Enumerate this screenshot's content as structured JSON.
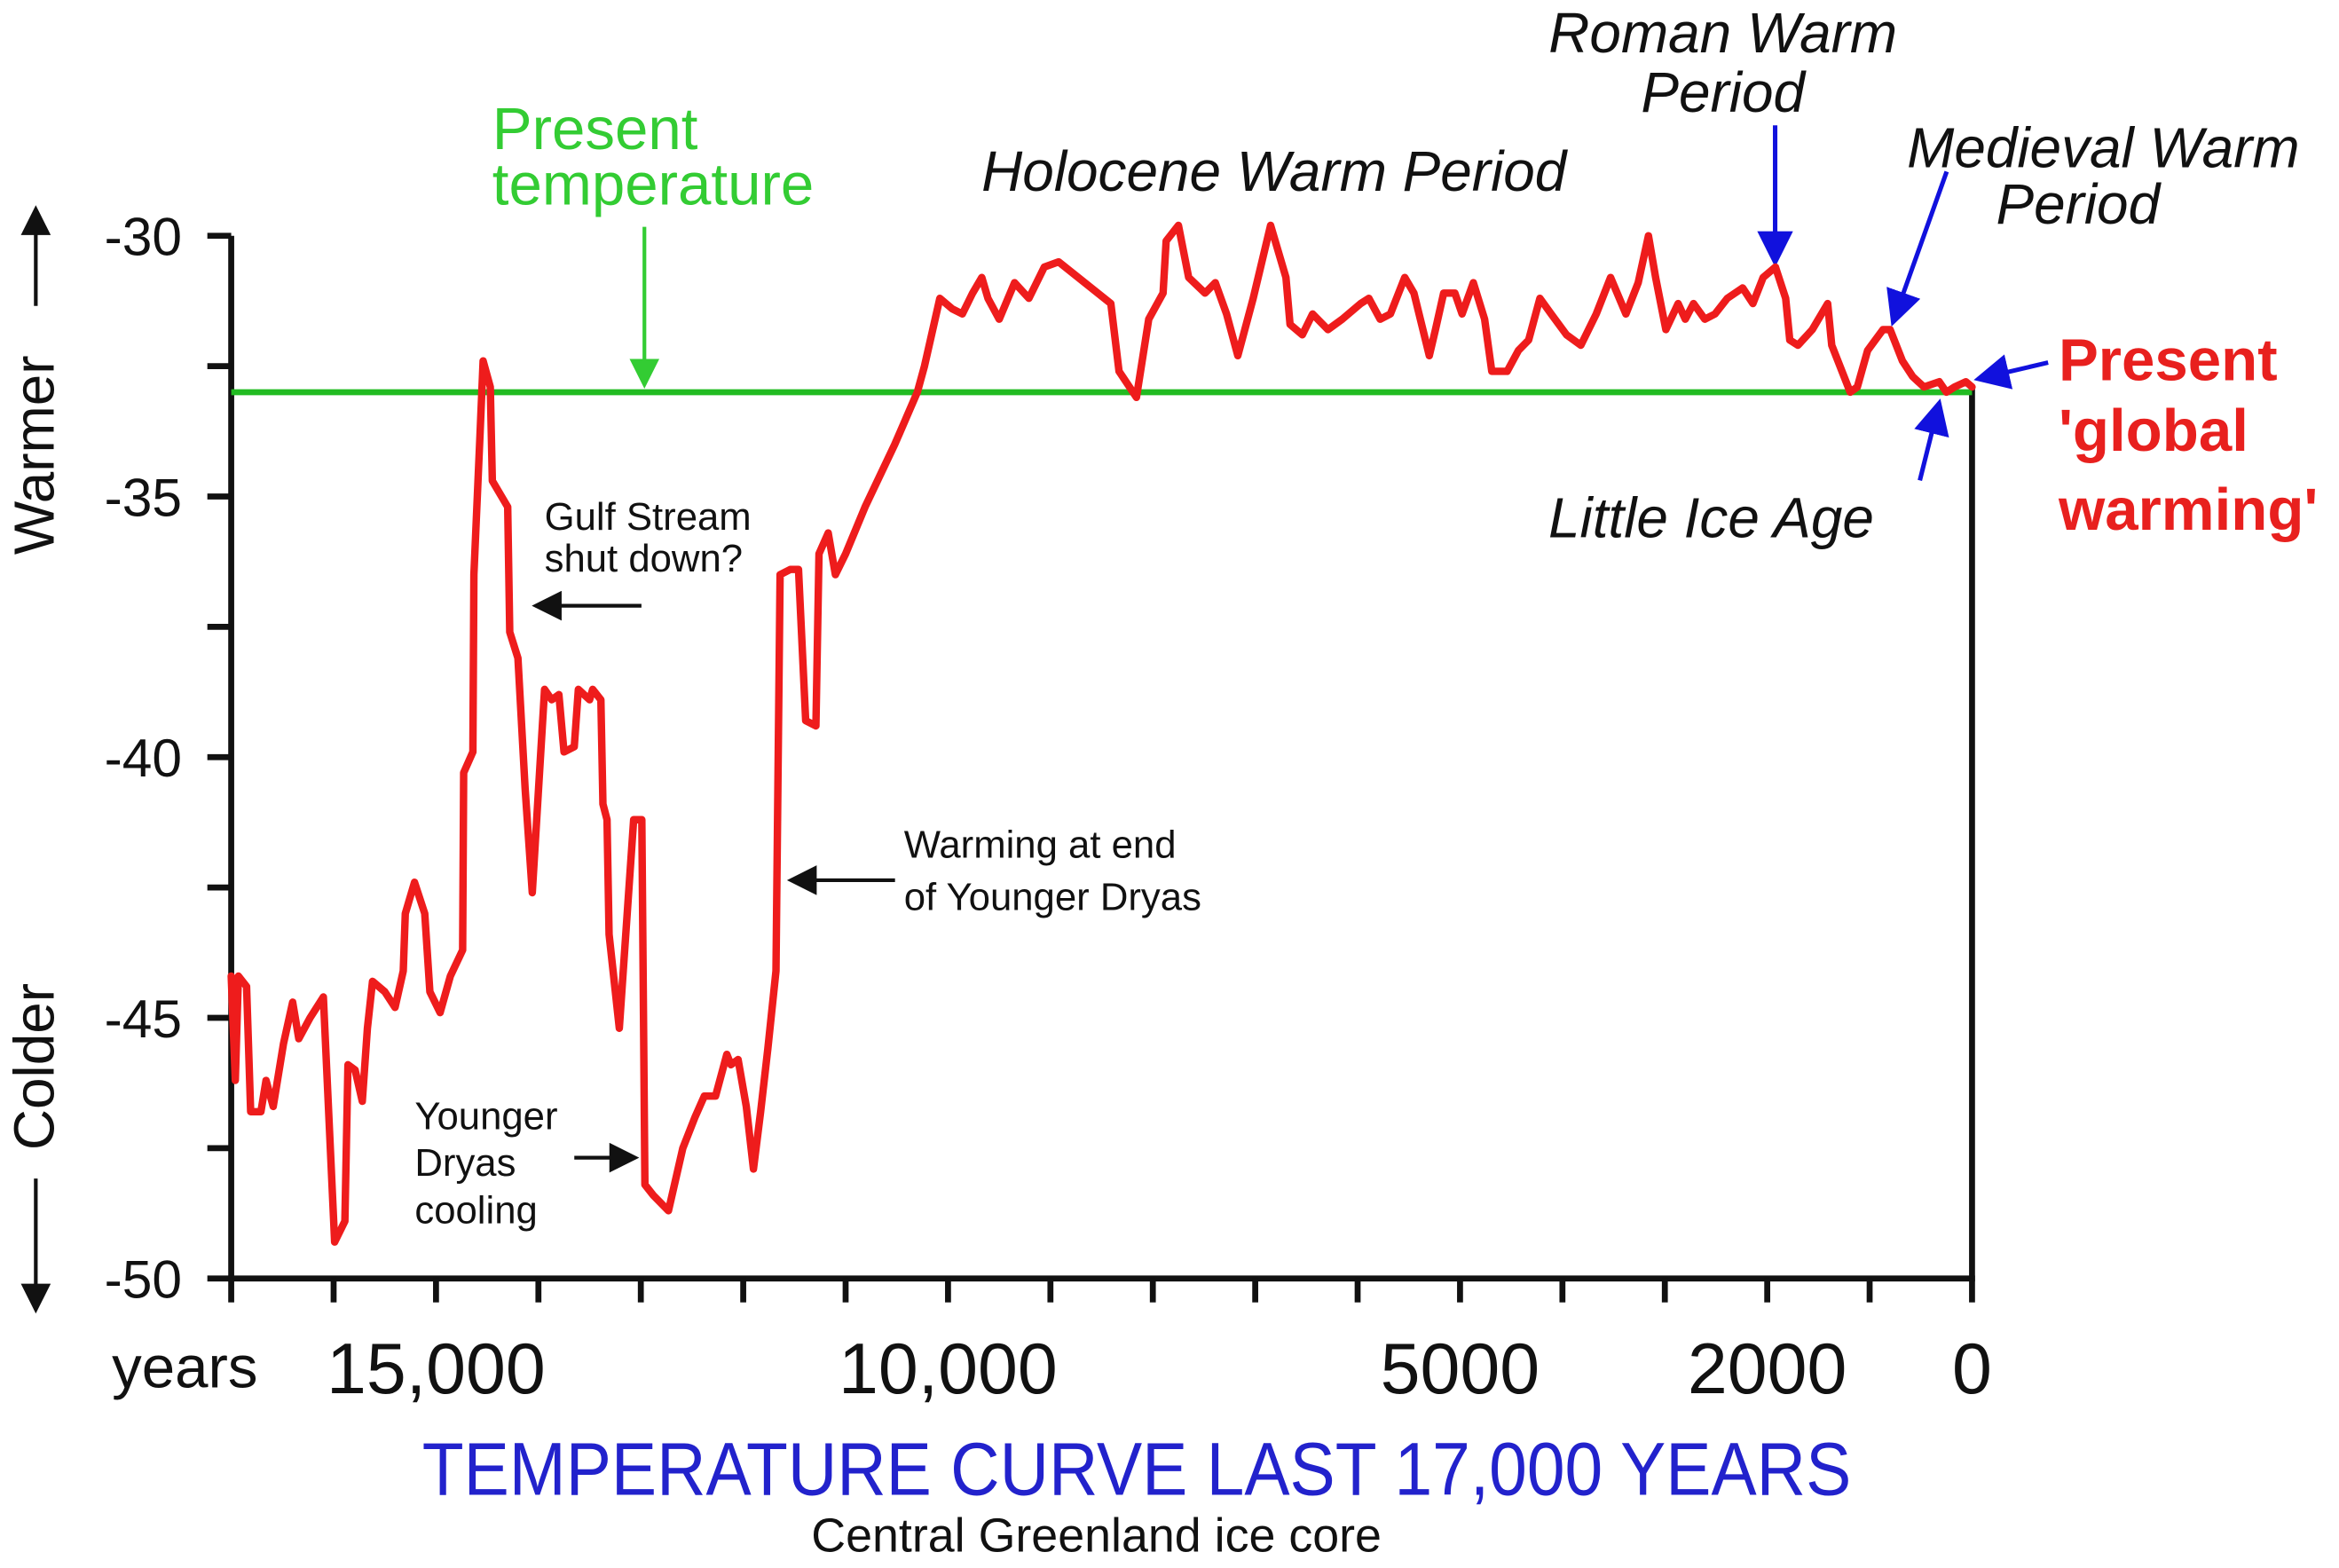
{
  "chart_data": {
    "type": "line",
    "title": "TEMPERATURE CURVE LAST 17,000 YEARS",
    "subtitle": "Central Greenland ice core",
    "xlabel": "years",
    "ylabel_top": "Warmer",
    "ylabel_bottom": "Colder",
    "color": "#ee1c1c",
    "xlim": [
      17000,
      0
    ],
    "xticks": [
      {
        "value": 15000,
        "label": "15,000"
      },
      {
        "value": 10000,
        "label": "10,000"
      },
      5000,
      2000,
      0
    ],
    "x_minor_ticks": [
      17000,
      16000,
      14000,
      13000,
      12000,
      11000,
      9000,
      8000,
      7000,
      6000,
      4000,
      3000,
      1000
    ],
    "ylim": [
      -50,
      -30
    ],
    "yticks": [
      -30,
      -35,
      -40,
      -45,
      -50
    ],
    "y_minor_ticks": [
      -32.5,
      -37.5,
      -42.5,
      -47.5
    ],
    "reference_line": {
      "value": -33,
      "color": "#22bb22"
    },
    "annotations": [
      {
        "lines": [
          "Present",
          "temperature"
        ]
      },
      {
        "lines": [
          "Holocene Warm Period"
        ]
      },
      {
        "lines": [
          "Roman Warm",
          "Period"
        ]
      },
      {
        "lines": [
          "Medieval Warm",
          "Period"
        ]
      },
      {
        "lines": [
          "Present",
          "'global",
          "warming'"
        ]
      },
      {
        "lines": [
          "Little Ice Age"
        ]
      },
      {
        "lines": [
          "Gulf Stream",
          "shut down?"
        ]
      },
      {
        "lines": [
          "Warming at end",
          "of Younger Dryas"
        ]
      },
      {
        "lines": [
          "Younger",
          "Dryas",
          "cooling"
        ]
      }
    ],
    "x": [
      17000,
      16960,
      16930,
      16850,
      16810,
      16710,
      16660,
      16590,
      16490,
      16400,
      16340,
      16230,
      16100,
      15990,
      15890,
      15860,
      15790,
      15720,
      15670,
      15620,
      15500,
      15400,
      15320,
      15300,
      15210,
      15110,
      15060,
      14960,
      14860,
      14740,
      14730,
      14640,
      14630,
      14570,
      14540,
      14470,
      14450,
      14300,
      14280,
      14200,
      14130,
      14060,
      13940,
      13870,
      13800,
      13750,
      13650,
      13610,
      13500,
      13470,
      13390,
      13370,
      13330,
      13310,
      13210,
      13070,
      12990,
      12960,
      12880,
      12730,
      12590,
      12470,
      12380,
      12270,
      12160,
      12120,
      12050,
      11970,
      11900,
      11830,
      11760,
      11680,
      11640,
      11540,
      11460,
      11390,
      11290,
      11260,
      11170,
      11100,
      11000,
      10810,
      10520,
      10300,
      10230,
      10080,
      9960,
      9860,
      9760,
      9670,
      9610,
      9500,
      9350,
      9210,
      9060,
      8920,
      8410,
      8330,
      8160,
      8040,
      7900,
      7870,
      7750,
      7650,
      7490,
      7390,
      7280,
      7170,
      7020,
      6850,
      6700,
      6660,
      6540,
      6440,
      6290,
      6150,
      5970,
      5890,
      5780,
      5680,
      5540,
      5450,
      5300,
      5240,
      5160,
      5050,
      4980,
      4870,
      4760,
      4690,
      4540,
      4430,
      4330,
      4220,
      4110,
      3960,
      3820,
      3670,
      3530,
      3380,
      3260,
      3160,
      3090,
      2990,
      2870,
      2800,
      2720,
      2610,
      2510,
      2390,
      2240,
      2140,
      2040,
      1920,
      1820,
      1780,
      1700,
      1560,
      1410,
      1370,
      1270,
      1190,
      1120,
      1020,
      870,
      800,
      680,
      580,
      470,
      320,
      250,
      170,
      60,
      0
    ],
    "values": [
      -44.2,
      -46.2,
      -44.2,
      -44.4,
      -46.8,
      -46.8,
      -46.2,
      -46.7,
      -45.5,
      -44.7,
      -45.4,
      -45.0,
      -44.6,
      -49.3,
      -48.9,
      -45.9,
      -46.0,
      -46.6,
      -45.2,
      -44.3,
      -44.5,
      -44.8,
      -44.1,
      -43.0,
      -42.4,
      -43.0,
      -44.5,
      -44.9,
      -44.2,
      -43.7,
      -40.3,
      -39.9,
      -36.5,
      -33.8,
      -32.4,
      -32.9,
      -34.7,
      -35.2,
      -37.6,
      -38.1,
      -40.6,
      -42.6,
      -38.7,
      -38.9,
      -38.8,
      -39.9,
      -39.8,
      -38.7,
      -38.9,
      -38.7,
      -38.9,
      -40.9,
      -41.2,
      -43.4,
      -45.2,
      -41.2,
      -41.2,
      -48.2,
      -48.4,
      -48.7,
      -47.5,
      -46.9,
      -46.5,
      -46.5,
      -45.7,
      -45.9,
      -45.8,
      -46.7,
      -47.9,
      -46.8,
      -45.6,
      -44.1,
      -36.5,
      -36.4,
      -36.4,
      -39.3,
      -39.4,
      -36.1,
      -35.7,
      -36.5,
      -36.1,
      -35.2,
      -34.0,
      -33.0,
      -32.5,
      -31.2,
      -31.4,
      -31.5,
      -31.1,
      -30.8,
      -31.2,
      -31.6,
      -30.9,
      -31.2,
      -30.6,
      -30.5,
      -31.3,
      -32.6,
      -33.1,
      -31.6,
      -31.1,
      -30.1,
      -29.8,
      -30.8,
      -31.1,
      -30.9,
      -31.5,
      -32.3,
      -31.2,
      -29.8,
      -30.8,
      -31.7,
      -31.9,
      -31.5,
      -31.8,
      -31.6,
      -31.3,
      -31.2,
      -31.6,
      -31.5,
      -30.8,
      -31.1,
      -32.3,
      -31.8,
      -31.1,
      -31.1,
      -31.5,
      -30.9,
      -31.6,
      -32.6,
      -32.6,
      -32.2,
      -32.0,
      -31.2,
      -31.5,
      -31.9,
      -32.1,
      -31.5,
      -30.8,
      -31.5,
      -30.9,
      -30.0,
      -30.8,
      -31.8,
      -31.3,
      -31.6,
      -31.3,
      -31.6,
      -31.5,
      -31.2,
      -31.0,
      -31.3,
      -30.8,
      -30.6,
      -31.2,
      -32.0,
      -32.1,
      -31.8,
      -31.3,
      -32.1,
      -32.6,
      -33.0,
      -32.9,
      -32.2,
      -31.8,
      -31.8,
      -32.4,
      -32.7,
      -32.9,
      -32.8,
      -33.0,
      -32.9,
      -32.8,
      -32.9
    ]
  }
}
